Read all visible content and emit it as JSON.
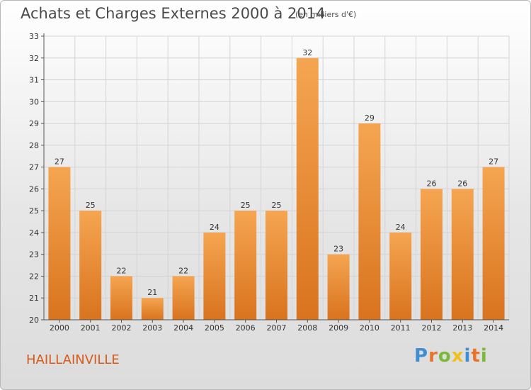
{
  "title": "Achats et Charges Externes 2000 à 2014",
  "subtitle": "(en milliers d'€)",
  "location": "HAILLAINVILLE",
  "logo": {
    "letters": [
      "P",
      "r",
      "o",
      "x",
      "i",
      "t",
      "i"
    ],
    "colors": [
      "#3d8fd1",
      "#e8742a",
      "#7bb93a",
      "#f0c020",
      "#3d8fd1",
      "#e8742a",
      "#7bb93a"
    ]
  },
  "colors": {
    "bar_top": "#f5a551",
    "bar_bottom": "#d9731e",
    "grid": "#d4d4d4",
    "title": "#4a4a4a",
    "location": "#d65a1a"
  },
  "chart_data": {
    "type": "bar",
    "categories": [
      "2000",
      "2001",
      "2002",
      "2003",
      "2004",
      "2005",
      "2006",
      "2007",
      "2008",
      "2009",
      "2010",
      "2011",
      "2012",
      "2013",
      "2014"
    ],
    "values": [
      27,
      25,
      22,
      21,
      22,
      24,
      25,
      25,
      32,
      23,
      29,
      24,
      26,
      26,
      27
    ],
    "ylim": [
      20,
      33
    ],
    "yticks": [
      20,
      21,
      22,
      23,
      24,
      25,
      26,
      27,
      28,
      29,
      30,
      31,
      32,
      33
    ],
    "grid": true,
    "legend": "none",
    "xlabel": "",
    "ylabel": ""
  }
}
